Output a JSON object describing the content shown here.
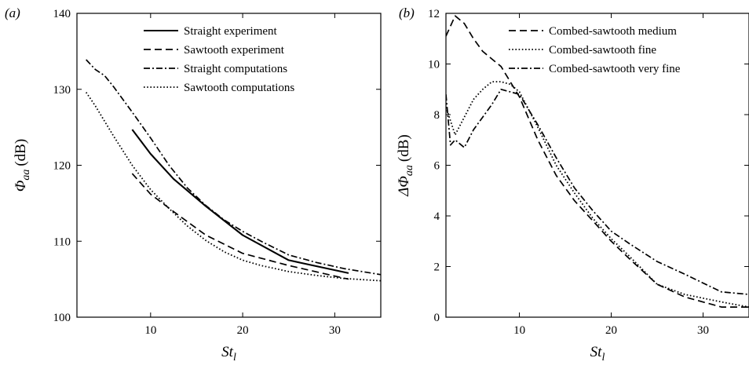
{
  "chart_data": [
    {
      "type": "line",
      "panel_label": "(a)",
      "xlabel": "St",
      "xlabel_sub": "l",
      "ylabel": "Φ",
      "ylabel_sub": "aa",
      "ylabel_unit": "(dB)",
      "xlim": [
        2,
        35
      ],
      "ylim": [
        100,
        140
      ],
      "xticks": [
        10,
        20,
        30
      ],
      "yticks": [
        100,
        110,
        120,
        130,
        140
      ],
      "grid": false,
      "legend_position": "top-right",
      "series": [
        {
          "name": "Straight experiment",
          "style": "solid",
          "x": [
            8,
            10,
            12.5,
            16,
            20,
            25,
            31.5
          ],
          "y": [
            124.7,
            121.5,
            118.2,
            114.6,
            110.8,
            107.5,
            105.8
          ]
        },
        {
          "name": "Sawtooth experiment",
          "style": "dashed",
          "x": [
            8,
            10,
            12.5,
            16,
            20,
            25,
            31.5
          ],
          "y": [
            118.9,
            116.2,
            113.9,
            110.8,
            108.4,
            106.8,
            105.0
          ]
        },
        {
          "name": "Straight computations",
          "style": "dashdot",
          "x": [
            3,
            4,
            5,
            6,
            8,
            10,
            12,
            14,
            16,
            18,
            20,
            22,
            25,
            28,
            31,
            35
          ],
          "y": [
            133.9,
            132.6,
            131.8,
            130.3,
            127.0,
            123.6,
            120.0,
            117.0,
            114.7,
            112.8,
            111.3,
            110.0,
            108.2,
            107.2,
            106.4,
            105.6
          ]
        },
        {
          "name": "Sawtooth computations",
          "style": "dotted",
          "x": [
            3,
            4,
            5,
            6,
            8,
            10,
            12,
            14,
            16,
            18,
            20,
            22,
            25,
            28,
            31,
            35
          ],
          "y": [
            129.6,
            127.8,
            125.8,
            123.8,
            120.0,
            116.8,
            114.3,
            112.0,
            110.1,
            108.6,
            107.5,
            106.8,
            106.0,
            105.5,
            105.1,
            104.8
          ]
        }
      ]
    },
    {
      "type": "line",
      "panel_label": "(b)",
      "xlabel": "St",
      "xlabel_sub": "l",
      "ylabel": "ΔΦ",
      "ylabel_sub": "aa",
      "ylabel_unit": "(dB)",
      "xlim": [
        2,
        35
      ],
      "ylim": [
        0,
        12
      ],
      "xticks": [
        10,
        20,
        30
      ],
      "yticks": [
        0,
        2,
        4,
        6,
        8,
        10,
        12
      ],
      "grid": false,
      "legend_position": "top-right",
      "series": [
        {
          "name": "Combed-sawtooth medium",
          "style": "dashed",
          "x": [
            2,
            3,
            4,
            5,
            6,
            7,
            8,
            10,
            12,
            14,
            16,
            18,
            20,
            22,
            25,
            28,
            32,
            35
          ],
          "y": [
            11.1,
            11.9,
            11.6,
            11.0,
            10.5,
            10.2,
            9.9,
            8.7,
            7.0,
            5.6,
            4.6,
            3.8,
            3.0,
            2.3,
            1.3,
            0.8,
            0.4,
            0.4
          ]
        },
        {
          "name": "Combed-sawtooth fine",
          "style": "dotted",
          "x": [
            2,
            3,
            4,
            5,
            6,
            7,
            8,
            9,
            10,
            12,
            14,
            16,
            18,
            20,
            22,
            25,
            28,
            32,
            35
          ],
          "y": [
            8.3,
            7.2,
            7.9,
            8.6,
            9.0,
            9.3,
            9.3,
            9.2,
            8.9,
            7.5,
            6.0,
            4.9,
            3.9,
            3.1,
            2.4,
            1.3,
            0.9,
            0.6,
            0.4
          ]
        },
        {
          "name": "Combed-sawtooth very fine",
          "style": "dashdot",
          "x": [
            2,
            2.5,
            3,
            4,
            5,
            6,
            7,
            8,
            10,
            12,
            14,
            16,
            18,
            20,
            22,
            25,
            28,
            32,
            35
          ],
          "y": [
            8.8,
            6.8,
            7.0,
            6.7,
            7.4,
            7.9,
            8.4,
            9.0,
            8.8,
            7.6,
            6.3,
            5.1,
            4.2,
            3.4,
            2.9,
            2.2,
            1.7,
            1.0,
            0.9
          ]
        }
      ]
    }
  ]
}
